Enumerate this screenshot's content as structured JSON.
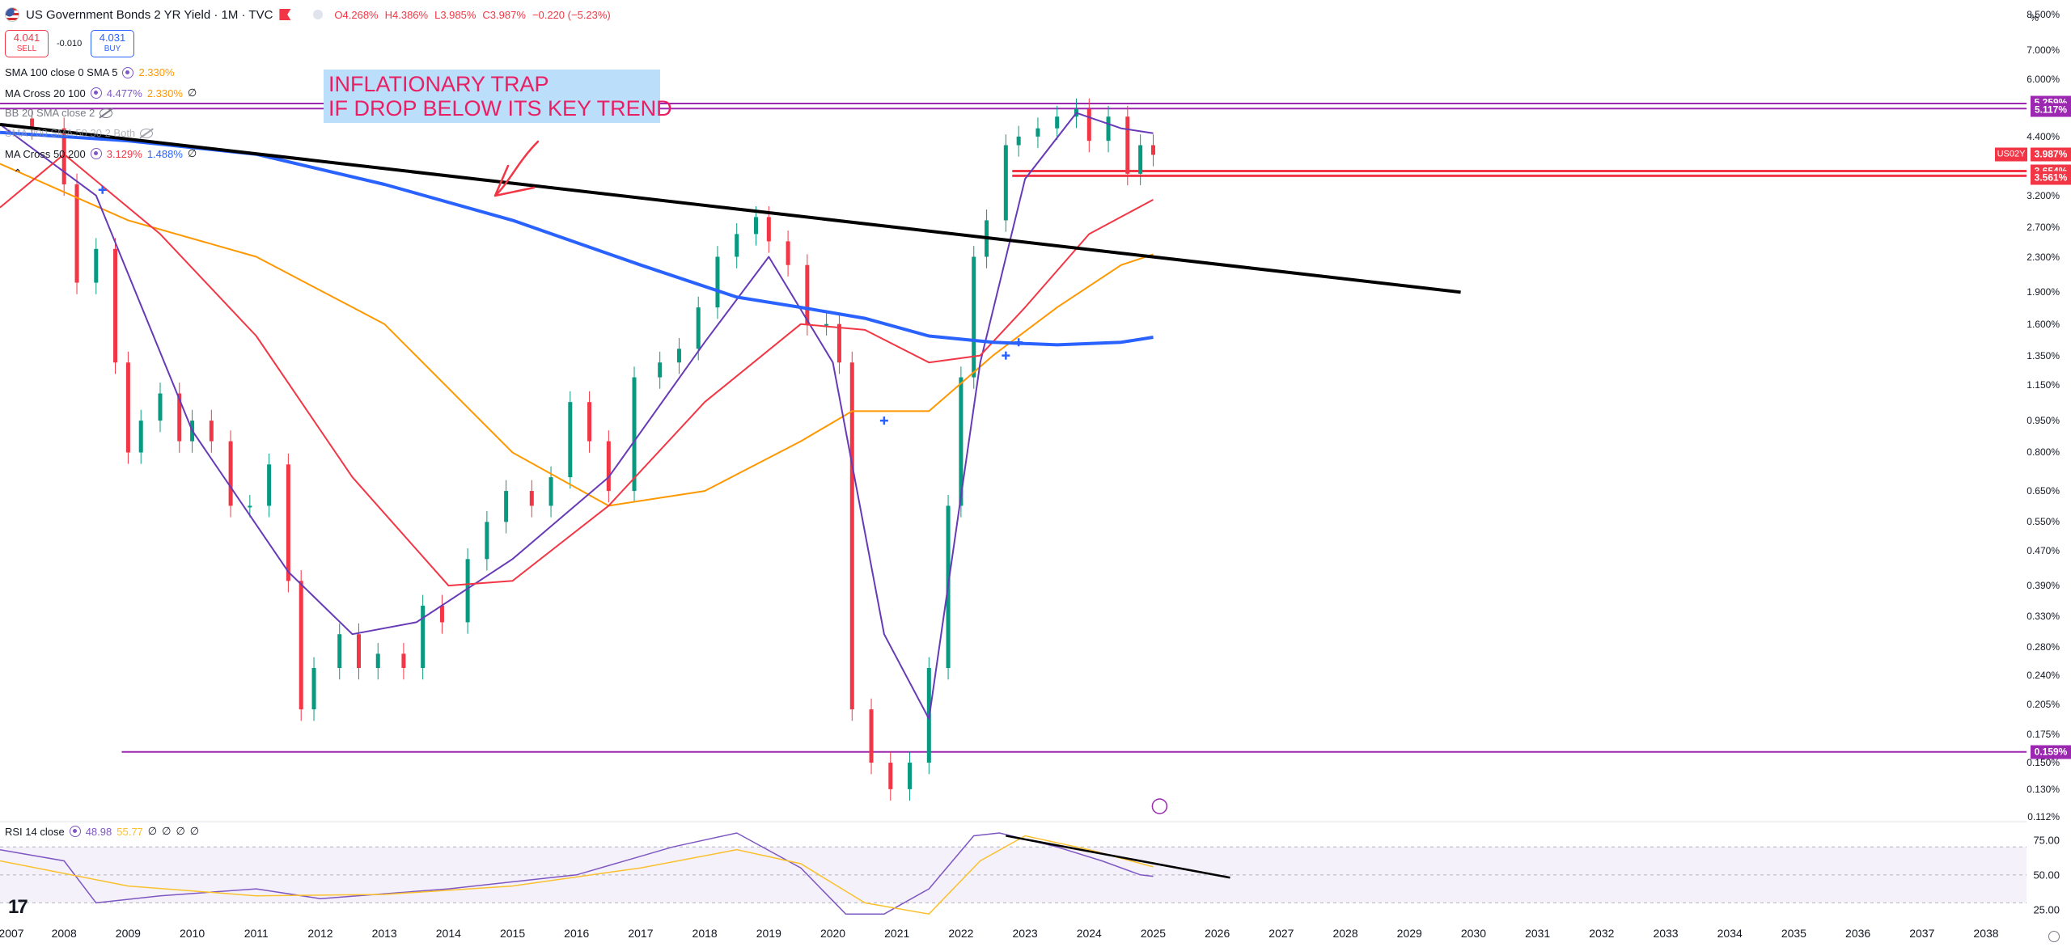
{
  "header": {
    "symbol_title": "US Government Bonds 2 YR Yield · 1M · TVC",
    "ohlc": {
      "open": "O4.268%",
      "high": "H4.386%",
      "low": "L3.985%",
      "close": "C3.987%",
      "change": "−0.220 (−5.23%)"
    },
    "sell": {
      "price": "4.041",
      "label": "SELL"
    },
    "spread": "-0.010",
    "buy": {
      "price": "4.031",
      "label": "BUY"
    }
  },
  "indicators": [
    {
      "name": "SMA 100 close 0 SMA 5",
      "values": [
        "2.330%"
      ],
      "colors": [
        "#ff9800"
      ]
    },
    {
      "name": "MA Cross 20 100",
      "values": [
        "4.477%",
        "2.330%",
        "∅"
      ],
      "colors": [
        "#7e57c2",
        "#ff9800",
        "#131722"
      ]
    },
    {
      "name": "BB 20 SMA close 2",
      "values": [],
      "colors": []
    },
    {
      "name": "SMA 200 SMA 50 30 2 Both",
      "values": [],
      "colors": []
    },
    {
      "name": "MA Cross 50 200",
      "values": [
        "3.129%",
        "1.488%",
        "∅"
      ],
      "colors": [
        "#f23645",
        "#2962ff",
        "#131722"
      ]
    }
  ],
  "annotation": {
    "line1": "INFLATIONARY TRAP",
    "line2": "IF DROP BELOW ITS KEY TREND",
    "color": "#e91e63",
    "background": "#bbdefb"
  },
  "price_axis": {
    "unit": "%",
    "ticks": [
      "8.500%",
      "7.000%",
      "6.000%",
      "4.400%",
      "3.200%",
      "2.700%",
      "2.300%",
      "1.900%",
      "1.600%",
      "1.350%",
      "1.150%",
      "0.950%",
      "0.800%",
      "0.650%",
      "0.550%",
      "0.470%",
      "0.390%",
      "0.330%",
      "0.280%",
      "0.240%",
      "0.205%",
      "0.175%",
      "0.150%",
      "0.130%",
      "0.112%"
    ],
    "badges": [
      {
        "label": "5.259%",
        "color": "#9c27b0"
      },
      {
        "label": "5.117%",
        "color": "#9c27b0"
      },
      {
        "label": "3.987%",
        "color": "#f23645"
      },
      {
        "label": "3.654%",
        "color": "#f23645"
      },
      {
        "label": "3.561%",
        "color": "#f23645"
      },
      {
        "label": "0.159%",
        "color": "#9c27b0"
      }
    ],
    "symbol_badge": "US02Y"
  },
  "time_axis": {
    "ticks": [
      "2007",
      "2008",
      "2009",
      "2010",
      "2011",
      "2012",
      "2013",
      "2014",
      "2015",
      "2016",
      "2017",
      "2018",
      "2019",
      "2020",
      "2021",
      "2022",
      "2023",
      "2024",
      "2025",
      "2026",
      "2027",
      "2028",
      "2029",
      "2030",
      "2031",
      "2032",
      "2033",
      "2034",
      "2035",
      "2036",
      "2037",
      "2038"
    ]
  },
  "rsi": {
    "name": "RSI 14 close",
    "values": [
      "48.98",
      "55.77",
      "∅",
      "∅",
      "∅",
      "∅"
    ],
    "value_colors": [
      "#7e57c2",
      "#fbc02d",
      "#131722",
      "#131722",
      "#131722",
      "#131722"
    ],
    "ticks": [
      "75.00",
      "50.00",
      "25.00"
    ]
  },
  "chart_data": {
    "type": "line",
    "title": "US Government Bonds 2 YR Yield",
    "timeframe": "1M",
    "y_scale": "log",
    "ylim": [
      0.112,
      8.5
    ],
    "xlim": [
      2007.0,
      2038.0
    ],
    "series": [
      {
        "name": "US02Y",
        "kind": "candles-close",
        "x": [
          2007.0,
          2007.5,
          2008.0,
          2008.2,
          2008.5,
          2008.8,
          2009.0,
          2009.2,
          2009.5,
          2009.8,
          2010.0,
          2010.3,
          2010.6,
          2010.9,
          2011.2,
          2011.5,
          2011.7,
          2011.9,
          2012.3,
          2012.6,
          2012.9,
          2013.3,
          2013.6,
          2013.9,
          2014.3,
          2014.6,
          2014.9,
          2015.3,
          2015.6,
          2015.9,
          2016.2,
          2016.5,
          2016.9,
          2017.3,
          2017.6,
          2017.9,
          2018.2,
          2018.5,
          2018.8,
          2019.0,
          2019.3,
          2019.6,
          2019.9,
          2020.1,
          2020.3,
          2020.6,
          2020.9,
          2021.2,
          2021.5,
          2021.8,
          2022.0,
          2022.2,
          2022.4,
          2022.7,
          2022.9,
          2023.2,
          2023.5,
          2023.8,
          2024.0,
          2024.3,
          2024.6,
          2024.8,
          2025.0
        ],
        "values": [
          4.85,
          4.6,
          3.4,
          2.0,
          2.4,
          1.3,
          0.8,
          0.95,
          1.1,
          0.85,
          0.95,
          0.85,
          0.6,
          0.6,
          0.75,
          0.4,
          0.2,
          0.25,
          0.3,
          0.25,
          0.27,
          0.25,
          0.35,
          0.32,
          0.45,
          0.55,
          0.65,
          0.6,
          0.7,
          1.05,
          0.85,
          0.65,
          1.2,
          1.3,
          1.4,
          1.75,
          2.3,
          2.6,
          2.85,
          2.5,
          2.2,
          1.6,
          1.6,
          1.3,
          0.2,
          0.15,
          0.13,
          0.15,
          0.25,
          0.6,
          1.2,
          2.3,
          2.8,
          4.2,
          4.4,
          4.6,
          4.9,
          5.1,
          4.3,
          4.9,
          3.6,
          4.2,
          3.987
        ]
      },
      {
        "name": "SMA 100",
        "x": [
          2007.0,
          2009.0,
          2011.0,
          2013.0,
          2015.0,
          2016.5,
          2018.0,
          2019.5,
          2020.3,
          2021.5,
          2022.5,
          2023.5,
          2024.5,
          2025.0
        ],
        "values": [
          3.8,
          2.8,
          2.3,
          1.6,
          0.8,
          0.6,
          0.65,
          0.85,
          1.0,
          1.0,
          1.35,
          1.75,
          2.2,
          2.33
        ]
      },
      {
        "name": "SMA 20",
        "x": [
          2007.0,
          2008.5,
          2010.0,
          2011.5,
          2012.5,
          2013.5,
          2015.0,
          2016.5,
          2018.0,
          2019.0,
          2020.0,
          2020.8,
          2021.5,
          2022.3,
          2023.0,
          2023.8,
          2024.5,
          2025.0
        ],
        "values": [
          4.7,
          3.2,
          0.9,
          0.42,
          0.3,
          0.32,
          0.45,
          0.7,
          1.45,
          2.3,
          1.3,
          0.3,
          0.19,
          1.3,
          3.5,
          5.0,
          4.6,
          4.48
        ]
      },
      {
        "name": "SMA 50",
        "x": [
          2007.0,
          2008.0,
          2009.5,
          2011.0,
          2012.5,
          2014.0,
          2015.0,
          2016.5,
          2018.0,
          2019.5,
          2020.5,
          2021.5,
          2022.3,
          2023.0,
          2024.0,
          2025.0
        ],
        "values": [
          3.0,
          4.0,
          2.6,
          1.5,
          0.7,
          0.39,
          0.4,
          0.6,
          1.05,
          1.6,
          1.55,
          1.3,
          1.35,
          1.75,
          2.6,
          3.13
        ]
      },
      {
        "name": "SMA 200",
        "x": [
          2007.0,
          2009.0,
          2011.0,
          2013.0,
          2015.0,
          2017.0,
          2018.5,
          2019.5,
          2020.5,
          2021.5,
          2022.5,
          2023.5,
          2024.5,
          2025.0
        ],
        "values": [
          4.5,
          4.3,
          4.0,
          3.4,
          2.8,
          2.2,
          1.85,
          1.75,
          1.65,
          1.5,
          1.45,
          1.43,
          1.45,
          1.49
        ]
      },
      {
        "name": "trend line",
        "x": [
          2007.0,
          2029.8
        ],
        "values": [
          4.7,
          1.9
        ]
      },
      {
        "name": "RSI 14",
        "pane": "rsi",
        "x": [
          2007.0,
          2008.0,
          2008.5,
          2009.5,
          2011.0,
          2012.0,
          2014.0,
          2016.0,
          2017.5,
          2018.5,
          2019.5,
          2020.2,
          2020.8,
          2021.5,
          2022.2,
          2022.6,
          2023.5,
          2024.2,
          2024.8,
          2025.0
        ],
        "values": [
          68,
          60,
          30,
          35,
          40,
          33,
          40,
          50,
          70,
          80,
          55,
          22,
          22,
          40,
          78,
          80,
          70,
          60,
          50,
          48.98
        ]
      },
      {
        "name": "RSI MA",
        "pane": "rsi",
        "x": [
          2007.0,
          2009.0,
          2011.0,
          2013.0,
          2015.0,
          2017.0,
          2018.5,
          2019.5,
          2020.5,
          2021.5,
          2022.3,
          2023.0,
          2024.0,
          2025.0
        ],
        "values": [
          60,
          42,
          35,
          36,
          42,
          55,
          68,
          58,
          30,
          22,
          60,
          78,
          68,
          55.77
        ]
      }
    ],
    "horizontal_levels": [
      5.259,
      5.117,
      3.654,
      3.561,
      0.159
    ],
    "rsi_ylim": [
      25,
      80
    ]
  }
}
